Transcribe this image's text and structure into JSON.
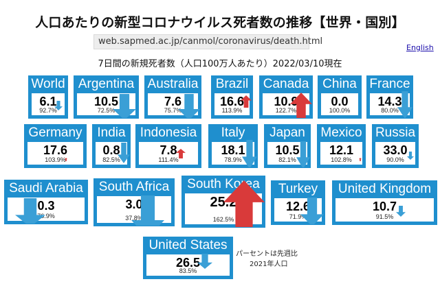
{
  "header": {
    "title": "人口あたりの新型コロナウイルス死者数の推移【世界・国別】",
    "url": "web.sapmed.ac.jp/canmol/coronavirus/death.html",
    "english_link": "English"
  },
  "subtitle": "7日間の新規死者数（人口100万人あたり）2022/03/10現在",
  "colors": {
    "card": "#1f8fce",
    "down_arrow": "#3a9fd6",
    "up_arrow": "#d93a3a"
  },
  "countries": [
    {
      "name": "World",
      "value": "6.1",
      "pct": "92.7%",
      "trend": "down"
    },
    {
      "name": "Argentina",
      "value": "10.5",
      "pct": "72.5%",
      "trend": "down"
    },
    {
      "name": "Australia",
      "value": "7.6",
      "pct": "75.7%",
      "trend": "down"
    },
    {
      "name": "Brazil",
      "value": "16.6",
      "pct": "113.9%",
      "trend": "up"
    },
    {
      "name": "Canada",
      "value": "10.9",
      "pct": "122.7%",
      "trend": "up"
    },
    {
      "name": "China",
      "value": "0.0",
      "pct": "100.0%",
      "trend": "flat"
    },
    {
      "name": "France",
      "value": "14.3",
      "pct": "80.0%",
      "trend": "down"
    },
    {
      "name": "Germany",
      "value": "17.6",
      "pct": "103.9%",
      "trend": "up"
    },
    {
      "name": "India",
      "value": "0.8",
      "pct": "82.5%",
      "trend": "down"
    },
    {
      "name": "Indonesia",
      "value": "7.8",
      "pct": "111.4%",
      "trend": "up"
    },
    {
      "name": "Italy",
      "value": "18.1",
      "pct": "78.9%",
      "trend": "down"
    },
    {
      "name": "Japan",
      "value": "10.5",
      "pct": "82.1%",
      "trend": "down"
    },
    {
      "name": "Mexico",
      "value": "12.1",
      "pct": "102.8%",
      "trend": "up"
    },
    {
      "name": "Russia",
      "value": "33.0",
      "pct": "90.0%",
      "trend": "down"
    },
    {
      "name": "Saudi Arabia",
      "value": "0.3",
      "pct": "76.9%",
      "trend": "down"
    },
    {
      "name": "South Africa",
      "value": "3.0",
      "pct": "37.8%",
      "trend": "down"
    },
    {
      "name": "South Korea",
      "value": "25.2",
      "pct": "162.5%",
      "trend": "up"
    },
    {
      "name": "Turkey",
      "value": "12.6",
      "pct": "71.9%",
      "trend": "down"
    },
    {
      "name": "United Kingdom",
      "value": "10.7",
      "pct": "91.5%",
      "trend": "down"
    },
    {
      "name": "United States",
      "value": "26.5",
      "pct": "83.5%",
      "trend": "down"
    }
  ],
  "notes": {
    "line1": "パーセントは先週比",
    "line2": "2021年人口"
  }
}
